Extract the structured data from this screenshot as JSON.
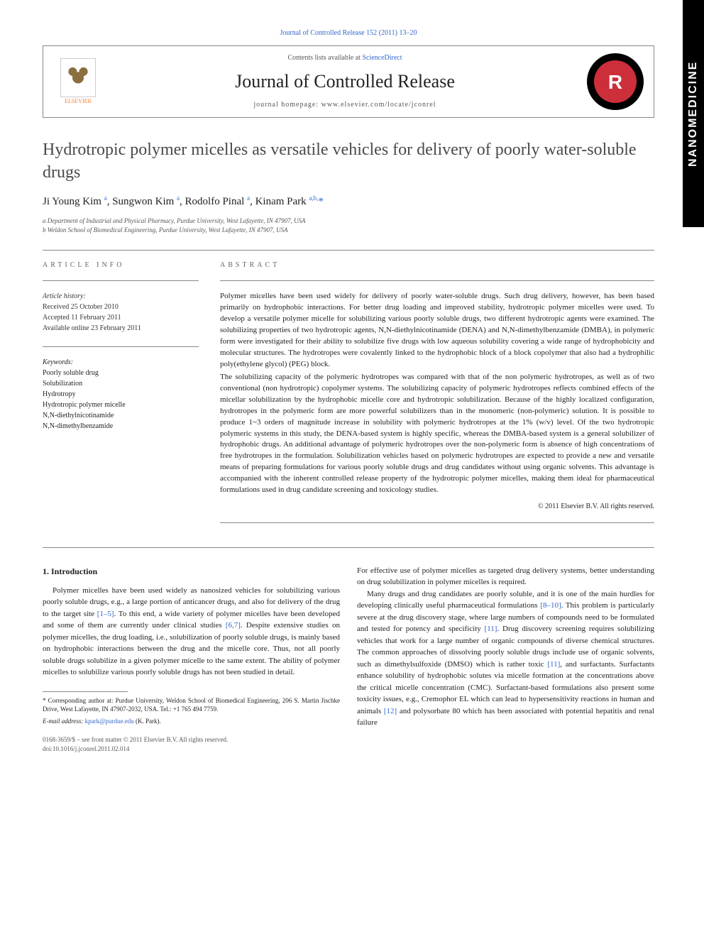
{
  "side_tab": "NANOMEDICINE",
  "top_link": "Journal of Controlled Release 152 (2011) 13–20",
  "header": {
    "elsevier_label": "ELSEVIER",
    "contents_prefix": "Contents lists available at ",
    "contents_link": "ScienceDirect",
    "journal_name": "Journal of Controlled Release",
    "homepage_label": "journal homepage: www.elsevier.com/locate/jconrel",
    "logo_letter": "R"
  },
  "title": "Hydrotropic polymer micelles as versatile vehicles for delivery of poorly water-soluble drugs",
  "authors_html": "Ji Young Kim <sup>a</sup>, Sungwon Kim <sup>a</sup>, Rodolfo Pinal <sup>a</sup>, Kinam Park <sup>a,b,</sup><span class='star'>*</span>",
  "affiliations": [
    "a Department of Industrial and Physical Pharmacy, Purdue University, West Lafayette, IN 47907, USA",
    "b Weldon School of Biomedical Engineering, Purdue University, West Lafayette, IN 47907, USA"
  ],
  "info": {
    "section_label": "ARTICLE INFO",
    "history_label": "Article history:",
    "history": [
      "Received 25 October 2010",
      "Accepted 11 February 2011",
      "Available online 23 February 2011"
    ],
    "keywords_label": "Keywords:",
    "keywords": [
      "Poorly soluble drug",
      "Solubilization",
      "Hydrotropy",
      "Hydrotropic polymer micelle",
      "N,N-diethylnicotinamide",
      "N,N-dimethylbenzamide"
    ]
  },
  "abstract": {
    "section_label": "ABSTRACT",
    "p1": "Polymer micelles have been used widely for delivery of poorly water-soluble drugs. Such drug delivery, however, has been based primarily on hydrophobic interactions. For better drug loading and improved stability, hydrotropic polymer micelles were used. To develop a versatile polymer micelle for solubilizing various poorly soluble drugs, two different hydrotropic agents were examined. The solubilizing properties of two hydrotropic agents, N,N-diethylnicotinamide (DENA) and N,N-dimethylbenzamide (DMBA), in polymeric form were investigated for their ability to solubilize five drugs with low aqueous solubility covering a wide range of hydrophobicity and molecular structures. The hydrotropes were covalently linked to the hydrophobic block of a block copolymer that also had a hydrophilic poly(ethylene glycol) (PEG) block.",
    "p2": "The solubilizing capacity of the polymeric hydrotropes was compared with that of the non polymeric hydrotropes, as well as of two conventional (non hydrotropic) copolymer systems. The solubilizing capacity of polymeric hydrotropes reflects combined effects of the micellar solubilization by the hydrophobic micelle core and hydrotropic solubilization. Because of the highly localized configuration, hydrotropes in the polymeric form are more powerful solubilizers than in the monomeric (non-polymeric) solution. It is possible to produce 1~3 orders of magnitude increase in solubility with polymeric hydrotropes at the 1% (w/v) level. Of the two hydrotropic polymeric systems in this study, the DENA-based system is highly specific, whereas the DMBA-based system is a general solubilizer of hydrophobic drugs. An additional advantage of polymeric hydrotropes over the non-polymeric form is absence of high concentrations of free hydrotropes in the formulation. Solubilization vehicles based on polymeric hydrotropes are expected to provide a new and versatile means of preparing formulations for various poorly soluble drugs and drug candidates without using organic solvents. This advantage is accompanied with the inherent controlled release property of the hydrotropic polymer micelles, making them ideal for pharmaceutical formulations used in drug candidate screening and toxicology studies.",
    "copyright": "© 2011 Elsevier B.V. All rights reserved."
  },
  "body": {
    "intro_heading": "1. Introduction",
    "col1_p1": "Polymer micelles have been used widely as nanosized vehicles for solubilizing various poorly soluble drugs, e.g., a large portion of anticancer drugs, and also for delivery of the drug to the target site [1–5]. To this end, a wide variety of polymer micelles have been developed and some of them are currently under clinical studies [6,7]. Despite extensive studies on polymer micelles, the drug loading, i.e., solubilization of poorly soluble drugs, is mainly based on hydrophobic interactions between the drug and the micelle core. Thus, not all poorly soluble drugs solubilize in a given polymer micelle to the same extent. The ability of polymer micelles to solubilize various poorly soluble drugs has not been studied in detail.",
    "col2_p1": "For effective use of polymer micelles as targeted drug delivery systems, better understanding on drug solubilization in polymer micelles is required.",
    "col2_p2": "Many drugs and drug candidates are poorly soluble, and it is one of the main hurdles for developing clinically useful pharmaceutical formulations [8–10]. This problem is particularly severe at the drug discovery stage, where large numbers of compounds need to be formulated and tested for potency and specificity [11]. Drug discovery screening requires solubilizing vehicles that work for a large number of organic compounds of diverse chemical structures. The common approaches of dissolving poorly soluble drugs include use of organic solvents, such as dimethylsulfoxide (DMSO) which is rather toxic [11], and surfactants. Surfactants enhance solubility of hydrophobic solutes via micelle formation at the concentrations above the critical micelle concentration (CMC). Surfactant-based formulations also present some toxicity issues, e.g., Cremophor EL which can lead to hypersensitivity reactions in human and animals [12] and polysorbate 80 which has been associated with potential hepatitis and renal failure"
  },
  "footnotes": {
    "corresponding": "* Corresponding author at: Purdue University, Weldon School of Biomedical Engineering, 206 S. Martin Jischke Drive, West Lafayette, IN 47907-2032, USA. Tel.: +1 765 494 7759.",
    "email_label": "E-mail address: ",
    "email": "kpark@purdue.edu",
    "email_suffix": " (K. Park)."
  },
  "bottom": {
    "line1": "0168-3659/$ – see front matter © 2011 Elsevier B.V. All rights reserved.",
    "line2": "doi:10.1016/j.jconrel.2011.02.014"
  },
  "colors": {
    "link": "#3366cc",
    "text": "#222222",
    "muted": "#555555",
    "elsevier_orange": "#f47c2c",
    "logo_red": "#cc2e3a",
    "border": "#888888"
  }
}
